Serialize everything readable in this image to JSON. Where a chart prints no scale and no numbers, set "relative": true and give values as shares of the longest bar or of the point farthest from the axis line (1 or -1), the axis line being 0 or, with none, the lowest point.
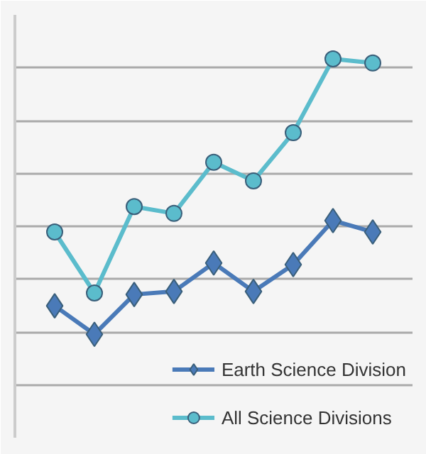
{
  "chart_data": {
    "type": "line",
    "relative": true,
    "categories": [
      null,
      null,
      null,
      null,
      null,
      null,
      null,
      null,
      null
    ],
    "series": [
      {
        "name": "Earth Science Division",
        "color": "#4a7ab8",
        "marker": "diamond",
        "values": [
          0.348,
          0.273,
          0.378,
          0.386,
          0.461,
          0.386,
          0.457,
          0.573,
          0.543
        ]
      },
      {
        "name": "All Science Divisions",
        "color": "#5bbccc",
        "marker": "circle",
        "values": [
          0.543,
          0.382,
          0.61,
          0.592,
          0.727,
          0.678,
          0.805,
          1,
          0.989
        ]
      }
    ],
    "grid": "y",
    "legend": "bottom right"
  }
}
